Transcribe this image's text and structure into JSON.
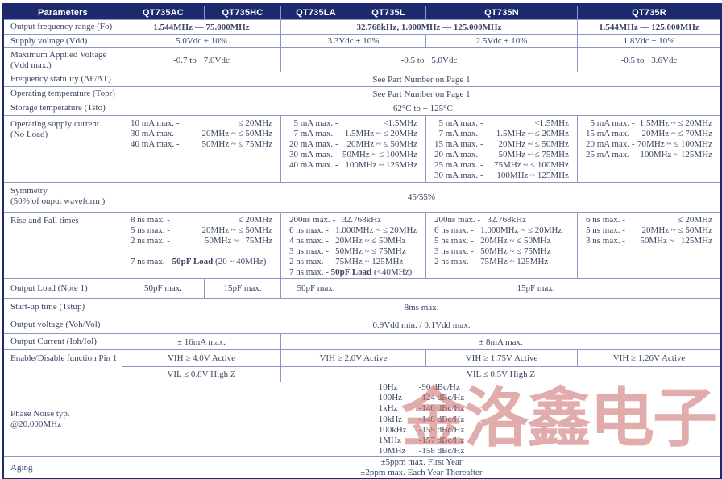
{
  "watermark": {
    "text": "金洛鑫电子",
    "color": "#c96a6a"
  },
  "colors": {
    "header_bg": "#1e2a6e",
    "grid_line": "#8d96c4",
    "body_text": "#3d4663"
  },
  "table": {
    "header": {
      "param_col": "Parameters",
      "models": [
        "QT735AC",
        "QT735HC",
        "QT735LA",
        "QT735L",
        "QT735N",
        "QT735R"
      ]
    },
    "rows": [
      {
        "name": "output-frequency-range",
        "label": [
          "Output frequency range (Fo)"
        ],
        "cells": [
          {
            "span": 2,
            "bold": true,
            "text": "1.544MHz — 75.000MHz"
          },
          {
            "span": 3,
            "bold": true,
            "text": "32.768kHz, 1.000MHz — 125.000MHz"
          },
          {
            "span": 1,
            "bold": true,
            "text": "1.544MHz — 125.000MHz"
          }
        ]
      },
      {
        "name": "supply-voltage",
        "label": [
          "Supply voltage (Vdd)"
        ],
        "cells": [
          {
            "span": 2,
            "text": "5.0Vdc ± 10%"
          },
          {
            "span": 2,
            "text": "3.3Vdc  ± 10%"
          },
          {
            "span": 1,
            "text": "2.5Vdc  ± 10%"
          },
          {
            "span": 1,
            "text": "1.8Vdc  ± 10%"
          }
        ]
      },
      {
        "name": "maximum-applied-voltage",
        "label": [
          "Maximum Applied Voltage",
          "(Vdd max.)"
        ],
        "cells": [
          {
            "span": 2,
            "text": "-0.7 to +7.0Vdc"
          },
          {
            "span": 3,
            "text": "-0.5 to +5.0Vdc"
          },
          {
            "span": 1,
            "text": "-0.5 to +3.6Vdc"
          }
        ]
      },
      {
        "name": "frequency-stability",
        "label": [
          "Frequency stability (ΔF/ΔT)"
        ],
        "cells": [
          {
            "span": 6,
            "text": "See Part Number on Page 1"
          }
        ]
      },
      {
        "name": "operating-temperature",
        "label": [
          "Operating temperature (Topr)"
        ],
        "cells": [
          {
            "span": 6,
            "text": "See Part Number on Page 1"
          }
        ]
      },
      {
        "name": "storage-temperature",
        "label": [
          "Storage temperature (Tsto)"
        ],
        "cells": [
          {
            "span": 6,
            "text": "-62°C to + 125°C"
          }
        ]
      },
      {
        "name": "operating-supply-current",
        "label": [
          "Operating supply current",
          "(No Load)"
        ],
        "top": true,
        "cells": [
          {
            "span": 2,
            "lines": [
              {
                "l": "10 mA max. -",
                "r": "≤ 20MHz"
              },
              {
                "l": "30 mA max. -",
                "r": "20MHz ~ ≤ 50MHz"
              },
              {
                "l": "40 mA max. -",
                "r": "50MHz ~ ≤ 75MHz"
              }
            ]
          },
          {
            "span": 2,
            "lines": [
              {
                "l": "  5 mA max. -",
                "r": "<1.5MHz"
              },
              {
                "l": "  7 mA max. -",
                "r": "1.5MHz ~ ≤ 20MHz"
              },
              {
                "l": "20 mA max. -",
                "r": "20MHz ~ ≤ 50MHz"
              },
              {
                "l": "30 mA max. -",
                "r": "50MHz ~ ≤ 100MHz"
              },
              {
                "l": "40 mA max. -",
                "r": "100MHz ~ 125MHz"
              }
            ]
          },
          {
            "span": 1,
            "lines": [
              {
                "l": "  5 mA max. -",
                "r": "<1.5MHz"
              },
              {
                "l": "  7 mA max. -",
                "r": "1.5MHz ~ ≤ 20MHz"
              },
              {
                "l": "15 mA max. -",
                "r": "20MHz ~ ≤ 50MHz"
              },
              {
                "l": "20 mA max. -",
                "r": "50MHz ~ ≤ 75MHz"
              },
              {
                "l": "25 mA max. -",
                "r": "75MHz ~ ≤ 100MHz"
              },
              {
                "l": "30 mA max. -",
                "r": "100MHz ~ 125MHz"
              }
            ]
          },
          {
            "span": 1,
            "lines": [
              {
                "l": "  5 mA max. -",
                "r": "1.5MHz ~ ≤ 20MHz"
              },
              {
                "l": "15 mA max. -",
                "r": "20MHz ~ ≤ 70MHz"
              },
              {
                "l": "20 mA max. -",
                "r": "70MHz ~ ≤ 100MHz"
              },
              {
                "l": "25 mA max. -",
                "r": "100MHz ~ 125MHz"
              }
            ]
          }
        ]
      },
      {
        "name": "symmetry",
        "label": [
          "Symmetry",
          "(50% of ouput waveform )"
        ],
        "top": true,
        "cells": [
          {
            "span": 6,
            "text": "45/55%"
          }
        ]
      },
      {
        "name": "rise-fall-times",
        "label": [
          "Rise and Fall times"
        ],
        "top": true,
        "cells": [
          {
            "span": 2,
            "lines": [
              {
                "l": "8 ns max. -",
                "r": "≤ 20MHz"
              },
              {
                "l": "5 ns max. -",
                "r": "20MHz ~ ≤ 50MHz"
              },
              {
                "l": "2 ns max. -",
                "r": "50MHz ~   75MHz"
              },
              {
                "gap": true
              },
              {
                "t": "7 ns max. - ",
                "b": "50pF Load",
                "a": " (20 ~ 40MHz)"
              }
            ]
          },
          {
            "span": 2,
            "lines": [
              {
                "t": "200ns max. -   32.768kHz"
              },
              {
                "t": "6 ns max. -   1.000MHz ~ ≤ 20MHz"
              },
              {
                "t": "4 ns max. -   20MHz ~ ≤ 50MHz"
              },
              {
                "t": "3 ns max. -   50MHz ~ ≤ 75MHz"
              },
              {
                "t": "2 ns max. -   75MHz ~ 125MHz"
              },
              {
                "t": "7 ns max. - ",
                "b": "50pF Load",
                "a": " (<40MHz)"
              }
            ]
          },
          {
            "span": 1,
            "lines": [
              {
                "t": "200ns max. -   32.768kHz"
              },
              {
                "t": "6 ns max. -   1.000MHz ~ ≤ 20MHz"
              },
              {
                "t": "5 ns max. -   20MHz ~ ≤ 50MHz"
              },
              {
                "t": "3 ns max. -   50MHz ~ ≤ 75MHz"
              },
              {
                "t": "2 ns max. -   75MHz ~ 125MHz"
              }
            ]
          },
          {
            "span": 1,
            "lines": [
              {
                "l": "6 ns max. -",
                "r": "≤ 20MHz"
              },
              {
                "l": "5 ns max. -",
                "r": "20MHz ~ ≤ 50MHz"
              },
              {
                "l": "3 ns max. -",
                "r": "50MHz ~   125MHz"
              }
            ]
          }
        ]
      },
      {
        "name": "output-load",
        "label": [
          "Output Load (Note 1)"
        ],
        "cells": [
          {
            "span": 1,
            "text": "50pF max."
          },
          {
            "span": 1,
            "text": "15pF max."
          },
          {
            "span": 1,
            "text": "50pF max."
          },
          {
            "span": 3,
            "text": "15pF max."
          }
        ]
      },
      {
        "name": "startup-time",
        "label": [
          "Start-up time (Tstup)"
        ],
        "cells": [
          {
            "span": 6,
            "text": "8ms max."
          }
        ]
      },
      {
        "name": "output-voltage",
        "label": [
          "Output voltage (Voh/Vol)"
        ],
        "cells": [
          {
            "span": 6,
            "text": "0.9Vdd min. / 0.1Vdd max."
          }
        ]
      },
      {
        "name": "output-current",
        "label": [
          "Output Current (Ioh/Iol)"
        ],
        "cells": [
          {
            "span": 2,
            "text": "± 16mA max."
          },
          {
            "span": 4,
            "text": "± 8mA max."
          }
        ]
      },
      {
        "name": "enable-disable-vih",
        "label": [
          "Enable/Disable function Pin 1"
        ],
        "label_rowspan": 2,
        "top": true,
        "cells": [
          {
            "span": 2,
            "text": "VIH ≥ 4.0V Active"
          },
          {
            "span": 2,
            "text": "VIH ≥ 2.0V Active"
          },
          {
            "span": 1,
            "text": "VIH ≥ 1.75V Active"
          },
          {
            "span": 1,
            "text": "VIH ≥ 1.26V Active"
          }
        ]
      },
      {
        "name": "enable-disable-vil",
        "label": null,
        "cells": [
          {
            "span": 2,
            "text": "VIL ≤ 0.8V High Z"
          },
          {
            "span": 4,
            "text": "VIL ≤ 0.5V High Z"
          }
        ]
      },
      {
        "name": "phase-noise",
        "label": [
          "Phase Noise typ.",
          "@20.000MHz"
        ],
        "cells": [
          {
            "span": 6,
            "noise": [
              {
                "f": "10Hz",
                "v": "-90 dBc/Hz"
              },
              {
                "f": "100Hz",
                "v": "-124 dBc/Hz"
              },
              {
                "f": "1kHz",
                "v": "-140 dBc/Hz"
              },
              {
                "f": "10kHz",
                "v": "-148 dBc/Hz"
              },
              {
                "f": "100kHz",
                "v": "-155 dBc/Hz"
              },
              {
                "f": "1MHz",
                "v": "-157 dBc/Hz"
              },
              {
                "f": "10MHz",
                "v": "-158 dBc/Hz"
              }
            ]
          }
        ]
      },
      {
        "name": "aging",
        "label": [
          "Aging"
        ],
        "cells": [
          {
            "span": 6,
            "center_lines": [
              "±5ppm max. First Year",
              "±2ppm max. Each Year Thereafter"
            ]
          }
        ]
      }
    ]
  }
}
